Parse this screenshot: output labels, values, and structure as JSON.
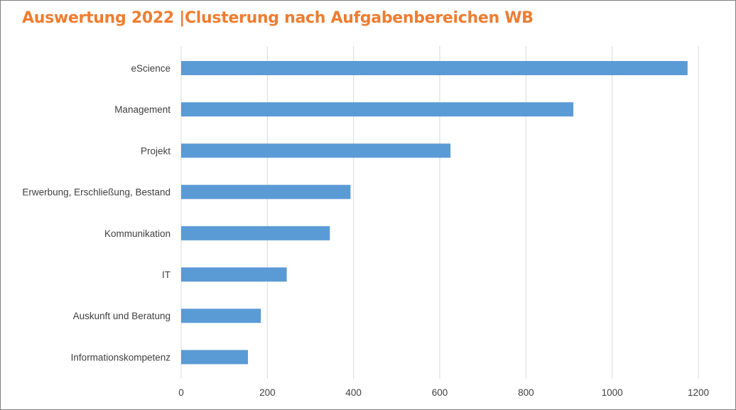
{
  "chart_data": {
    "type": "bar",
    "orientation": "horizontal",
    "title": "Auswertung 2022 |Clusterung nach Aufgabenbereichen WB",
    "categories": [
      "eScience",
      "Management",
      "Projekt",
      "Erwerbung, Erschließung, Bestand",
      "Kommunikation",
      "IT",
      "Auskunft und Beratung",
      "Informationskompetenz"
    ],
    "values": [
      1175,
      910,
      625,
      393,
      345,
      245,
      185,
      155
    ],
    "xlim": [
      0,
      1200
    ],
    "xticks": [
      0,
      200,
      400,
      600,
      800,
      1000,
      1200
    ],
    "xlabel": "",
    "ylabel": "",
    "grid": "vertical",
    "legend": "none",
    "colors": {
      "bar": "#5b9bd5",
      "title": "#ed7d31",
      "grid": "#d9d9d9",
      "text": "#404040"
    }
  }
}
